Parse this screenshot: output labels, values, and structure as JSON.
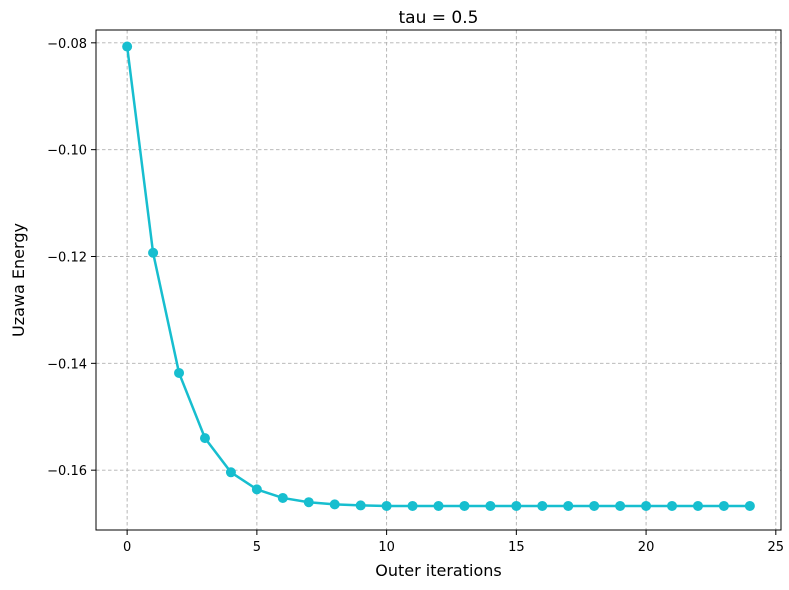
{
  "chart_data": {
    "type": "line",
    "title": "tau = 0.5",
    "xlabel": "Outer iterations",
    "ylabel": "Uzawa Energy",
    "xlim": [
      -1.2,
      25.2
    ],
    "ylim": [
      -0.1712,
      -0.0776
    ],
    "xticks": [
      0,
      5,
      10,
      15,
      20,
      25
    ],
    "xtick_labels": [
      "0",
      "5",
      "10",
      "15",
      "20",
      "25"
    ],
    "yticks": [
      -0.08,
      -0.1,
      -0.12,
      -0.14,
      -0.16
    ],
    "ytick_labels": [
      "−0.08",
      "−0.10",
      "−0.12",
      "−0.14",
      "−0.16"
    ],
    "grid": true,
    "series": [
      {
        "color": "#17becf",
        "marker": "circle",
        "x": [
          0,
          1,
          2,
          3,
          4,
          5,
          6,
          7,
          8,
          9,
          10,
          11,
          12,
          13,
          14,
          15,
          16,
          17,
          18,
          19,
          20,
          21,
          22,
          23,
          24
        ],
        "y": [
          -0.0807,
          -0.1193,
          -0.1418,
          -0.154,
          -0.1604,
          -0.1636,
          -0.1652,
          -0.166,
          -0.1664,
          -0.1666,
          -0.1667,
          -0.1667,
          -0.1667,
          -0.1667,
          -0.1667,
          -0.1667,
          -0.1667,
          -0.1667,
          -0.1667,
          -0.1667,
          -0.1667,
          -0.1667,
          -0.1667,
          -0.1667,
          -0.1667
        ]
      }
    ]
  }
}
